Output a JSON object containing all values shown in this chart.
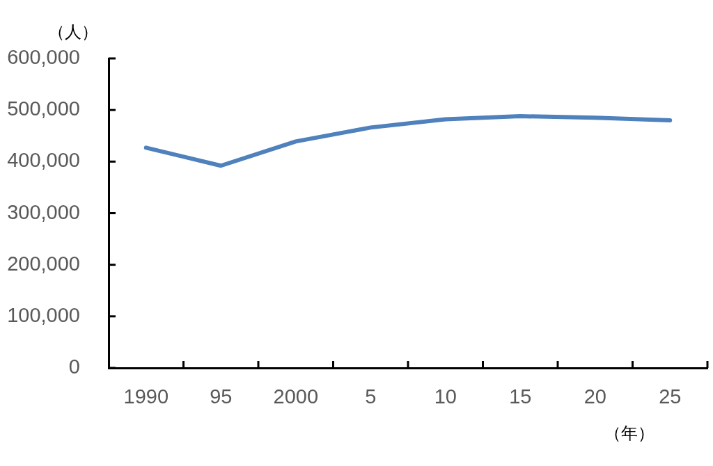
{
  "chart_data": {
    "type": "line",
    "xlabel": "（年）",
    "ylabel": "（人）",
    "categories": [
      "1990",
      "95",
      "2000",
      "5",
      "10",
      "15",
      "20",
      "25"
    ],
    "series": [
      {
        "color": "#4f81bd",
        "values": [
          427000,
          392000,
          439000,
          466000,
          482000,
          488000,
          485000,
          480000
        ]
      }
    ],
    "ylim": [
      0,
      600000
    ],
    "yticks": [
      0,
      {
        "value": 100000,
        "label": "100,000"
      },
      {
        "value": 200000,
        "label": "200,000"
      },
      {
        "value": 300000,
        "label": "300,000"
      },
      {
        "value": 400000,
        "label": "400,000"
      },
      {
        "value": 500000,
        "label": "500,000"
      },
      {
        "value": 600000,
        "label": "600,000"
      }
    ]
  }
}
